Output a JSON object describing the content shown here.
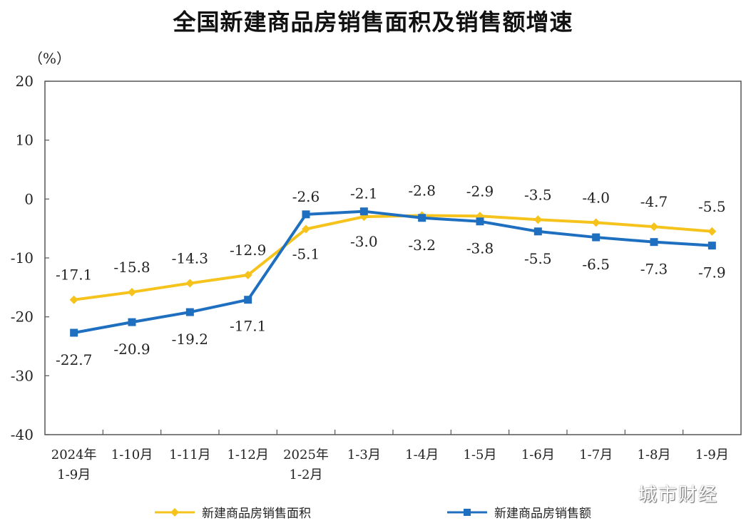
{
  "chart_data": {
    "type": "line",
    "title": "全国新建商品房销售面积及销售额增速",
    "ylabel": "（%）",
    "xlabel": "",
    "ylim": [
      -40,
      20
    ],
    "yticks": [
      "20",
      "10",
      "0",
      "-10",
      "-20",
      "-30",
      "-40"
    ],
    "ytick_values": [
      20,
      10,
      0,
      -10,
      -20,
      -30,
      -40
    ],
    "categories": [
      [
        "2024年",
        "1-9月"
      ],
      [
        "1-10月"
      ],
      [
        "1-11月"
      ],
      [
        "1-12月"
      ],
      [
        "2025年",
        "1-2月"
      ],
      [
        "1-3月"
      ],
      [
        "1-4月"
      ],
      [
        "1-5月"
      ],
      [
        "1-6月"
      ],
      [
        "1-7月"
      ],
      [
        "1-8月"
      ],
      [
        "1-9月"
      ]
    ],
    "series": [
      {
        "name": "新建商品房销售面积",
        "color": "#f5c31c",
        "marker": "diamond",
        "values": [
          -17.1,
          -15.8,
          -14.3,
          -12.9,
          -5.1,
          -3.0,
          -2.8,
          -2.9,
          -3.5,
          -4.0,
          -4.7,
          -5.5
        ],
        "labels": [
          "-17.1",
          "-15.8",
          "-14.3",
          "-12.9",
          "-5.1",
          "-3.0",
          "-2.8",
          "-2.9",
          "-3.5",
          "-4.0",
          "-4.7",
          "-5.5"
        ]
      },
      {
        "name": "新建商品房销售额",
        "color": "#1f6fc0",
        "marker": "square",
        "values": [
          -22.7,
          -20.9,
          -19.2,
          -17.1,
          -2.6,
          -2.1,
          -3.2,
          -3.8,
          -5.5,
          -6.5,
          -7.3,
          -7.9
        ],
        "labels": [
          "-22.7",
          "-20.9",
          "-19.2",
          "-17.1",
          "-2.6",
          "-2.1",
          "-3.2",
          "-3.8",
          "-5.5",
          "-6.5",
          "-7.3",
          "-7.9"
        ]
      }
    ],
    "grid": false,
    "legend_position": "bottom"
  },
  "watermark_text": "城市财经"
}
